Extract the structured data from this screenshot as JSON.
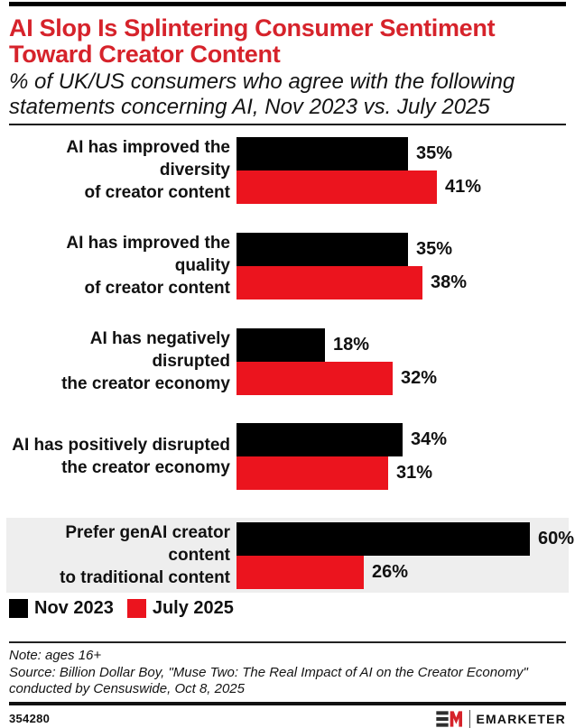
{
  "header": {
    "title_line1": "AI Slop Is Splintering Consumer Sentiment",
    "title_line2": "Toward Creator Content",
    "subtitle_line1": "% of UK/US consumers who agree with the following",
    "subtitle_line2": "statements concerning AI, Nov 2023 vs. July 2025"
  },
  "chart_data": {
    "type": "bar",
    "orientation": "horizontal",
    "title": "AI Slop Is Splintering Consumer Sentiment Toward Creator Content",
    "subtitle": "% of UK/US consumers who agree with the following statements concerning AI, Nov 2023 vs. July 2025",
    "unit": "%",
    "categories": [
      "AI has improved the diversity of creator content",
      "AI has improved the quality of creator content",
      "AI has negatively disrupted the creator economy",
      "AI has positively disrupted the creator economy",
      "Prefer genAI creator content to traditional content"
    ],
    "category_line_breaks": [
      [
        "AI has improved the diversity",
        "of creator content"
      ],
      [
        "AI has improved the quality",
        "of creator content"
      ],
      [
        "AI has negatively disrupted",
        "the creator economy"
      ],
      [
        "AI has positively disrupted",
        "the creator economy"
      ],
      [
        "Prefer genAI creator content",
        "to traditional content"
      ]
    ],
    "series": [
      {
        "name": "Nov 2023",
        "color": "#000000",
        "values": [
          35,
          35,
          18,
          34,
          60
        ]
      },
      {
        "name": "July 2025",
        "color": "#eb141e",
        "values": [
          41,
          38,
          32,
          31,
          26
        ]
      }
    ],
    "highlighted_category_index": 4,
    "value_labels": "outside-end",
    "axis": "none",
    "xlim": [
      0,
      67
    ],
    "legend_position": "bottom-left",
    "grid": false
  },
  "colors": {
    "title_red": "#d6232b",
    "bar_black": "#000000",
    "bar_red": "#eb141e",
    "highlight_band": "#eeeeee",
    "logo_red": "#d6232b",
    "logo_dark": "#2e2e2e"
  },
  "footer": {
    "note": "Note: ages 16+",
    "source_line1": "Source: Billion Dollar Boy, \"Muse Two: The Real Impact of AI on the Creator Economy\"",
    "source_line2": "conducted by Censuswide, Oct 8, 2025",
    "chart_id": "354280",
    "brand": "EMARKETER"
  }
}
